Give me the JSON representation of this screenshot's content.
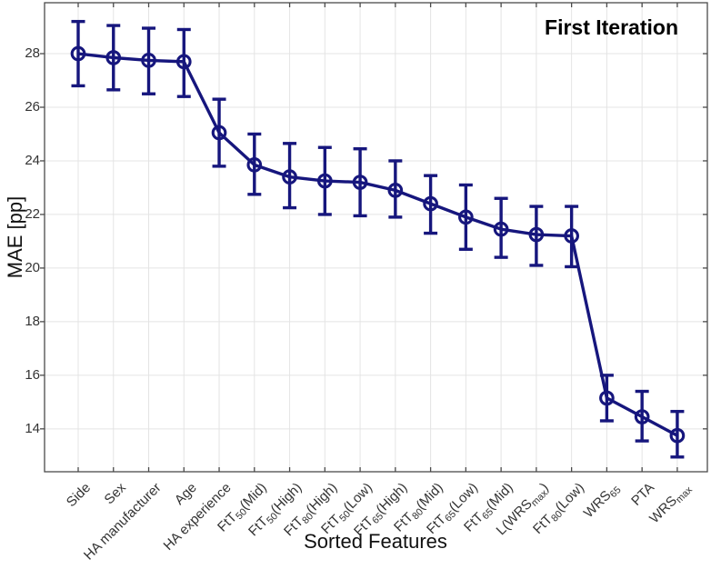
{
  "figure": {
    "title": "First Iteration",
    "xlabel": "Sorted Features",
    "ylabel": "MAE [pp]"
  },
  "chart_data": {
    "type": "line",
    "title": "First Iteration",
    "xlabel": "Sorted Features",
    "ylabel": "MAE [pp]",
    "marker": "open-circle",
    "error_bars": true,
    "grid": true,
    "legend": null,
    "ylim": [
      12.4,
      29.9
    ],
    "yticks": [
      14,
      16,
      18,
      20,
      22,
      24,
      26,
      28
    ],
    "line_color": "#16167d",
    "grid_color": "#e4e4e4",
    "axis_color": "#4a4a4a",
    "categories": [
      "Side",
      "Sex",
      "HA manufacturer",
      "Age",
      "HA experience",
      "FtT_{50}(Mid)",
      "FtT_{50}(High)",
      "FtT_{80}(High)",
      "FtT_{50}(Low)",
      "FtT_{65}(High)",
      "FtT_{80}(Mid)",
      "FtT_{65}(Low)",
      "FtT_{65}(Mid)",
      "L(WRS_{max})",
      "FtT_{80}(Low)",
      "WRS_{65}",
      "PTA",
      "WRS_{max}"
    ],
    "series": [
      {
        "name": "MAE",
        "values": [
          28.0,
          27.85,
          27.75,
          27.7,
          25.05,
          23.85,
          23.4,
          23.25,
          23.2,
          22.9,
          22.4,
          21.9,
          21.45,
          21.25,
          21.2,
          15.15,
          14.45,
          13.75
        ],
        "err_low": [
          26.8,
          26.65,
          26.5,
          26.4,
          23.8,
          22.75,
          22.25,
          22.0,
          21.95,
          21.9,
          21.3,
          20.7,
          20.4,
          20.1,
          20.05,
          14.3,
          13.55,
          12.95
        ],
        "err_high": [
          29.2,
          29.05,
          28.95,
          28.9,
          26.3,
          25.0,
          24.65,
          24.5,
          24.45,
          24.0,
          23.45,
          23.1,
          22.6,
          22.3,
          22.3,
          16.0,
          15.4,
          14.65
        ]
      }
    ]
  }
}
